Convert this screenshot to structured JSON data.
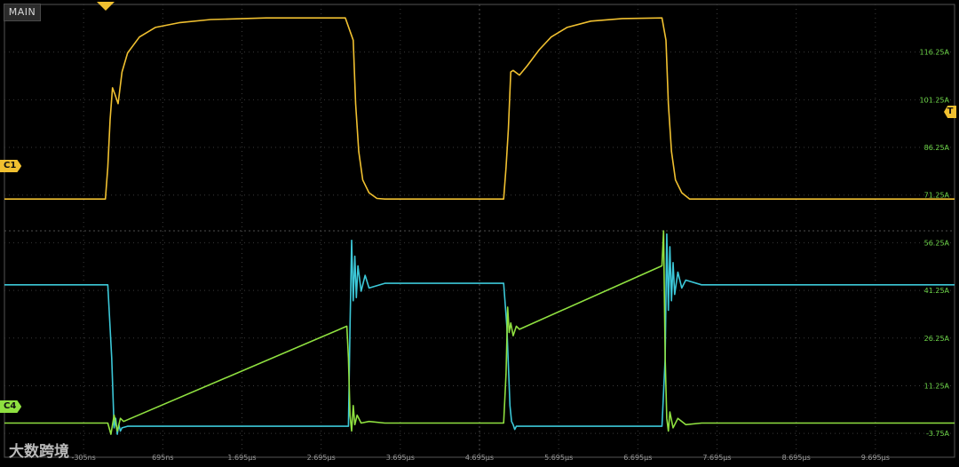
{
  "header": {
    "tab_label": "MAIN"
  },
  "markers": {
    "c1": "C1",
    "c4": "C4",
    "trigger": "T"
  },
  "watermark": "大数跨境",
  "colors": {
    "ch1": "#f0c030",
    "ch2": "#3cc8d8",
    "ch3": "#8fe040",
    "grid": "#3a3a3a",
    "axis_text": "#6fd84a",
    "tick_text": "#9a9a9a"
  },
  "chart_data": {
    "type": "line",
    "title": "",
    "xlabel": "",
    "ylabel": "",
    "grid": true,
    "x_unit": "µs",
    "xlim": [
      -1.305,
      10.695
    ],
    "ylim": [
      -11.25,
      131.25
    ],
    "x_tick_labels": [
      "-305ns",
      "695ns",
      "1.695µs",
      "2.695µs",
      "3.695µs",
      "4.695µs",
      "5.695µs",
      "6.695µs",
      "7.695µs",
      "8.695µs",
      "9.695µs"
    ],
    "x_tick_values": [
      -0.305,
      0.695,
      1.695,
      2.695,
      3.695,
      4.695,
      5.695,
      6.695,
      7.695,
      8.695,
      9.695
    ],
    "y_tick_labels": [
      "116.25A",
      "101.25A",
      "86.25A",
      "71.25A",
      "56.25A",
      "41.25A",
      "26.25A",
      "11.25A",
      "-3.75A"
    ],
    "y_tick_values": [
      116.25,
      101.25,
      86.25,
      71.25,
      56.25,
      41.25,
      26.25,
      11.25,
      -3.75
    ],
    "series": [
      {
        "color": "#f0c030",
        "x": [
          -1.305,
          -0.03,
          0.0,
          0.03,
          0.06,
          0.09,
          0.13,
          0.18,
          0.25,
          0.4,
          0.6,
          0.9,
          1.3,
          2.0,
          3.0,
          3.1,
          3.13,
          3.17,
          3.22,
          3.3,
          3.4,
          3.5,
          4.5,
          5.0,
          5.03,
          5.06,
          5.09,
          5.12,
          5.2,
          5.3,
          5.45,
          5.6,
          5.8,
          6.1,
          6.5,
          7.0,
          7.05,
          7.08,
          7.12,
          7.17,
          7.25,
          7.35,
          8.5,
          10.695
        ],
        "y": [
          70.0,
          70.0,
          80.0,
          95.0,
          105.0,
          103.0,
          100.0,
          110.0,
          116.0,
          121.0,
          124.0,
          125.5,
          126.5,
          127.0,
          127.0,
          120.0,
          100.0,
          85.0,
          76.0,
          72.0,
          70.2,
          70.0,
          70.0,
          70.0,
          80.0,
          92.0,
          110.0,
          110.5,
          109.0,
          112.0,
          117.0,
          121.0,
          124.0,
          126.0,
          126.8,
          127.0,
          120.0,
          100.0,
          85.0,
          76.0,
          72.0,
          70.0,
          70.0,
          70.0
        ]
      },
      {
        "color": "#3cc8d8",
        "x": [
          -1.305,
          0.0,
          0.05,
          0.08,
          0.1,
          0.12,
          0.14,
          0.16,
          0.18,
          0.25,
          1.0,
          2.0,
          3.04,
          3.06,
          3.08,
          3.1,
          3.12,
          3.14,
          3.16,
          3.2,
          3.25,
          3.3,
          3.5,
          4.0,
          5.0,
          5.04,
          5.08,
          5.1,
          5.12,
          5.14,
          5.16,
          5.2,
          5.3,
          6.0,
          7.0,
          7.04,
          7.06,
          7.08,
          7.1,
          7.12,
          7.14,
          7.16,
          7.2,
          7.25,
          7.3,
          7.5,
          8.5,
          10.695
        ],
        "y": [
          43.0,
          43.0,
          20.0,
          -2.0,
          1.0,
          -4.0,
          -1.0,
          -3.0,
          -2.0,
          -1.5,
          -1.5,
          -1.5,
          -1.5,
          30.0,
          57.0,
          38.0,
          52.0,
          39.0,
          49.0,
          41.0,
          46.0,
          42.0,
          43.5,
          43.5,
          43.5,
          30.0,
          5.0,
          0.0,
          -1.0,
          -2.5,
          -1.5,
          -1.5,
          -1.5,
          -1.5,
          -1.5,
          20.0,
          59.0,
          35.0,
          55.0,
          38.0,
          50.0,
          40.0,
          47.0,
          42.0,
          44.5,
          43.0,
          43.0,
          43.0
        ]
      },
      {
        "color": "#8fe040",
        "x": [
          -1.305,
          0.0,
          0.04,
          0.08,
          0.12,
          0.16,
          0.2,
          3.02,
          3.04,
          3.06,
          3.08,
          3.1,
          3.12,
          3.15,
          3.2,
          3.3,
          3.5,
          4.5,
          5.0,
          5.03,
          5.05,
          5.07,
          5.09,
          5.12,
          5.16,
          5.2,
          7.0,
          7.02,
          7.04,
          7.06,
          7.08,
          7.1,
          7.14,
          7.2,
          7.3,
          7.5,
          8.5,
          10.695
        ],
        "y": [
          -0.5,
          -0.5,
          -4.0,
          2.0,
          -3.0,
          1.0,
          0.0,
          30.0,
          20.0,
          2.0,
          -3.0,
          5.0,
          -1.0,
          2.0,
          -0.5,
          0.0,
          -0.5,
          -0.5,
          -0.5,
          15.0,
          36.0,
          28.0,
          31.0,
          27.0,
          30.0,
          29.0,
          49.0,
          60.0,
          20.0,
          1.0,
          -3.0,
          3.0,
          -2.0,
          1.0,
          -1.0,
          -0.5,
          -0.5,
          -0.5
        ]
      }
    ]
  }
}
